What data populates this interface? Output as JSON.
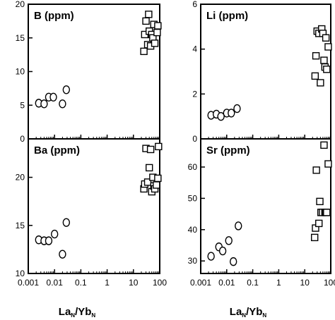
{
  "chart_data": [
    {
      "type": "scatter",
      "title": "B (ppm)",
      "xscale": "log",
      "xlim": [
        0.001,
        100
      ],
      "ylim": [
        0,
        20
      ],
      "yticks": [
        0,
        5,
        10,
        15,
        20
      ],
      "series": [
        {
          "marker": "circle",
          "x": [
            0.0025,
            0.004,
            0.006,
            0.009,
            0.02,
            0.028
          ],
          "y": [
            5.3,
            5.2,
            6.2,
            6.2,
            5.2,
            7.3
          ]
        },
        {
          "marker": "square",
          "x": [
            25,
            27,
            30,
            35,
            38,
            40,
            45,
            50,
            55,
            60,
            65,
            80,
            85
          ],
          "y": [
            13,
            15.5,
            17.5,
            14,
            18.5,
            16,
            13.8,
            15.5,
            15,
            17,
            14.2,
            15.8,
            16.8
          ]
        }
      ]
    },
    {
      "type": "scatter",
      "title": "Li (ppm)",
      "xscale": "log",
      "xlim": [
        0.001,
        100
      ],
      "ylim": [
        0,
        6
      ],
      "yticks": [
        0,
        2,
        4,
        6
      ],
      "series": [
        {
          "marker": "circle",
          "x": [
            0.0025,
            0.004,
            0.006,
            0.01,
            0.015,
            0.025
          ],
          "y": [
            1.05,
            1.1,
            1.0,
            1.15,
            1.15,
            1.35
          ]
        },
        {
          "marker": "square",
          "x": [
            25,
            27,
            30,
            35,
            40,
            45,
            50,
            55,
            60,
            65,
            70,
            80
          ],
          "y": [
            2.8,
            3.7,
            4.8,
            4.7,
            2.5,
            4.9,
            4.7,
            3.5,
            3.2,
            4.5,
            3.1,
            4.1
          ]
        }
      ]
    },
    {
      "type": "scatter",
      "title": "Ba (ppm)",
      "xscale": "log",
      "xlim": [
        0.001,
        100
      ],
      "ylim": [
        10,
        24
      ],
      "yticks": [
        10,
        15,
        20
      ],
      "series": [
        {
          "marker": "circle",
          "x": [
            0.0025,
            0.004,
            0.006,
            0.01,
            0.02,
            0.028
          ],
          "y": [
            13.5,
            13.4,
            13.4,
            14.1,
            12.0,
            15.3
          ]
        },
        {
          "marker": "square",
          "x": [
            25,
            27,
            30,
            35,
            40,
            45,
            50,
            55,
            60,
            65,
            75,
            85,
            90
          ],
          "y": [
            18.8,
            19.3,
            23,
            19.5,
            21,
            22.9,
            18.5,
            20,
            19.1,
            18.8,
            19.2,
            19.9,
            23.2
          ]
        }
      ]
    },
    {
      "type": "scatter",
      "title": "Sr (ppm)",
      "xscale": "log",
      "xlim": [
        0.001,
        100
      ],
      "ylim": [
        26,
        69
      ],
      "yticks": [
        30,
        40,
        50,
        60
      ],
      "xticks": [
        "0.001",
        "0.01",
        "0.1",
        "1",
        "10",
        "100"
      ],
      "series": [
        {
          "marker": "circle",
          "x": [
            0.0025,
            0.005,
            0.007,
            0.012,
            0.018,
            0.028
          ],
          "y": [
            31.5,
            34.5,
            33.2,
            36.5,
            29.8,
            41.2
          ]
        },
        {
          "marker": "square",
          "x": [
            24,
            26,
            28,
            35,
            38,
            42,
            48,
            55,
            60,
            65,
            70,
            80
          ],
          "y": [
            37.5,
            40.5,
            59,
            42,
            49,
            45.5,
            45.5,
            67,
            45.5,
            45.5,
            45.5,
            61
          ]
        }
      ]
    }
  ],
  "x_tick_labels": [
    "0.001",
    "0.01",
    "0.1",
    "1",
    "10",
    "100"
  ],
  "xlabel": {
    "main1": "La",
    "sub1": "N",
    "main2": "/Yb",
    "sub2": "N"
  }
}
